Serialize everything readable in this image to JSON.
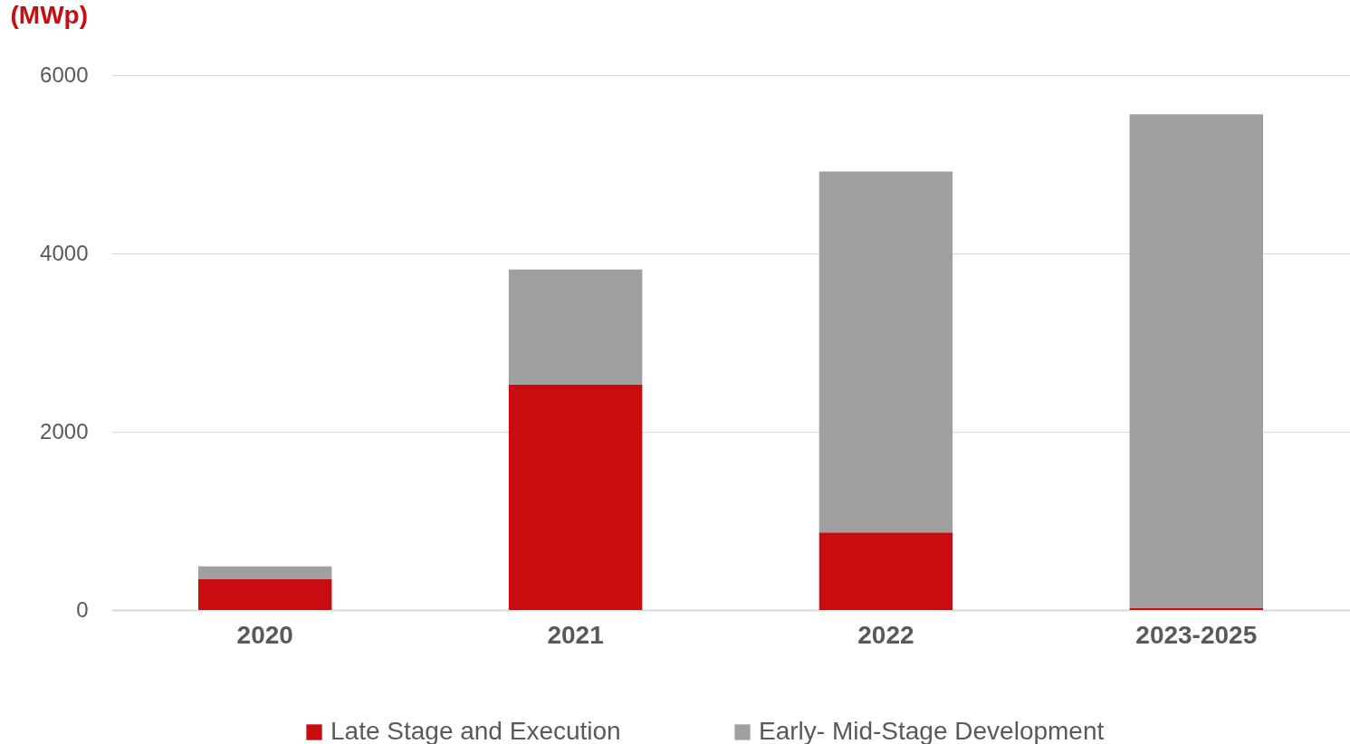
{
  "chart_data": {
    "type": "bar",
    "ylabel": "(MWp)",
    "categories": [
      "2020",
      "2021",
      "2022",
      "2023-2025"
    ],
    "stacked": true,
    "series": [
      {
        "name": "Late Stage and Execution",
        "color": "#c90c10",
        "values": [
          350,
          2530,
          870,
          20
        ]
      },
      {
        "name": "Early- Mid-Stage Development",
        "color": "#a0a0a0",
        "values": [
          140,
          1290,
          4050,
          5540
        ]
      }
    ],
    "ylim": [
      0,
      6000
    ],
    "yticks": [
      0,
      2000,
      4000,
      6000
    ],
    "grid": "y",
    "legend": "bottom"
  }
}
